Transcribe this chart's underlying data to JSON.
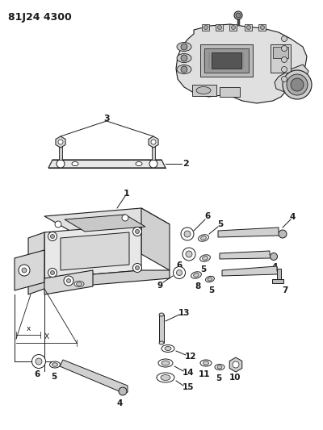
{
  "title": "81J24 4300",
  "bg_color": "#ffffff",
  "fig_width": 4.0,
  "fig_height": 5.33,
  "dpi": 100,
  "line_color": "#1a1a1a",
  "gray_fill": "#c8c8c8",
  "light_gray": "#e0e0e0",
  "dark_gray": "#888888"
}
